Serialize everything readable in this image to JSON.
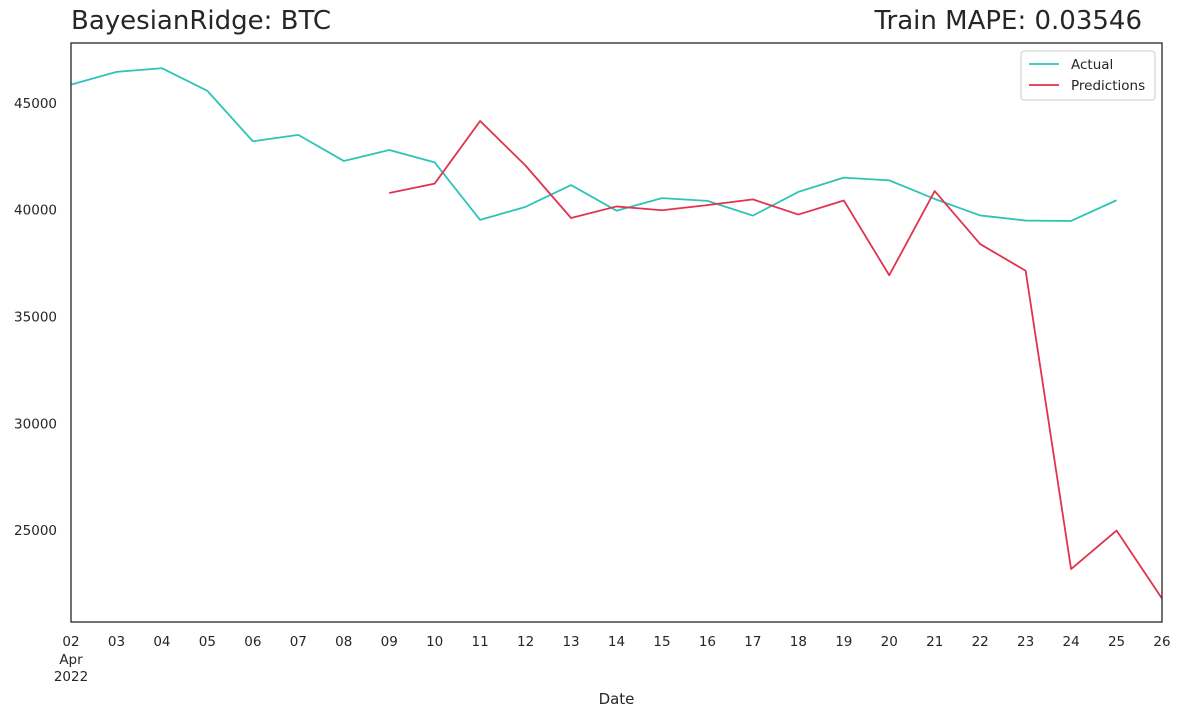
{
  "chart_data": {
    "type": "line",
    "title_left": "BayesianRidge: BTC",
    "title_right": "Train MAPE: 0.03546",
    "xlabel": "Date",
    "ylabel": "",
    "x": [
      "02",
      "03",
      "04",
      "05",
      "06",
      "07",
      "08",
      "09",
      "10",
      "11",
      "12",
      "13",
      "14",
      "15",
      "16",
      "17",
      "18",
      "19",
      "20",
      "21",
      "22",
      "23",
      "24",
      "25",
      "26"
    ],
    "x_sublabel": [
      "Apr",
      "2022"
    ],
    "yticks": [
      25000,
      30000,
      35000,
      40000,
      45000
    ],
    "ylim": [
      20700,
      47800
    ],
    "grid": false,
    "legend_position": "top-right",
    "series": [
      {
        "name": "Actual",
        "color": "#2ec4b6",
        "values": [
          45850,
          46450,
          46620,
          45560,
          43200,
          43500,
          42280,
          42790,
          42210,
          39520,
          40130,
          41150,
          39950,
          40540,
          40410,
          39720,
          40830,
          41500,
          41370,
          40500,
          39730,
          39490,
          39470,
          40440,
          null
        ]
      },
      {
        "name": "Predictions",
        "color": "#e0334f",
        "values": [
          null,
          null,
          null,
          null,
          null,
          null,
          null,
          40780,
          41220,
          44150,
          42060,
          39610,
          40150,
          39970,
          40210,
          40480,
          39770,
          40430,
          36930,
          40870,
          38390,
          37140,
          23180,
          24980,
          21800
        ]
      }
    ]
  }
}
